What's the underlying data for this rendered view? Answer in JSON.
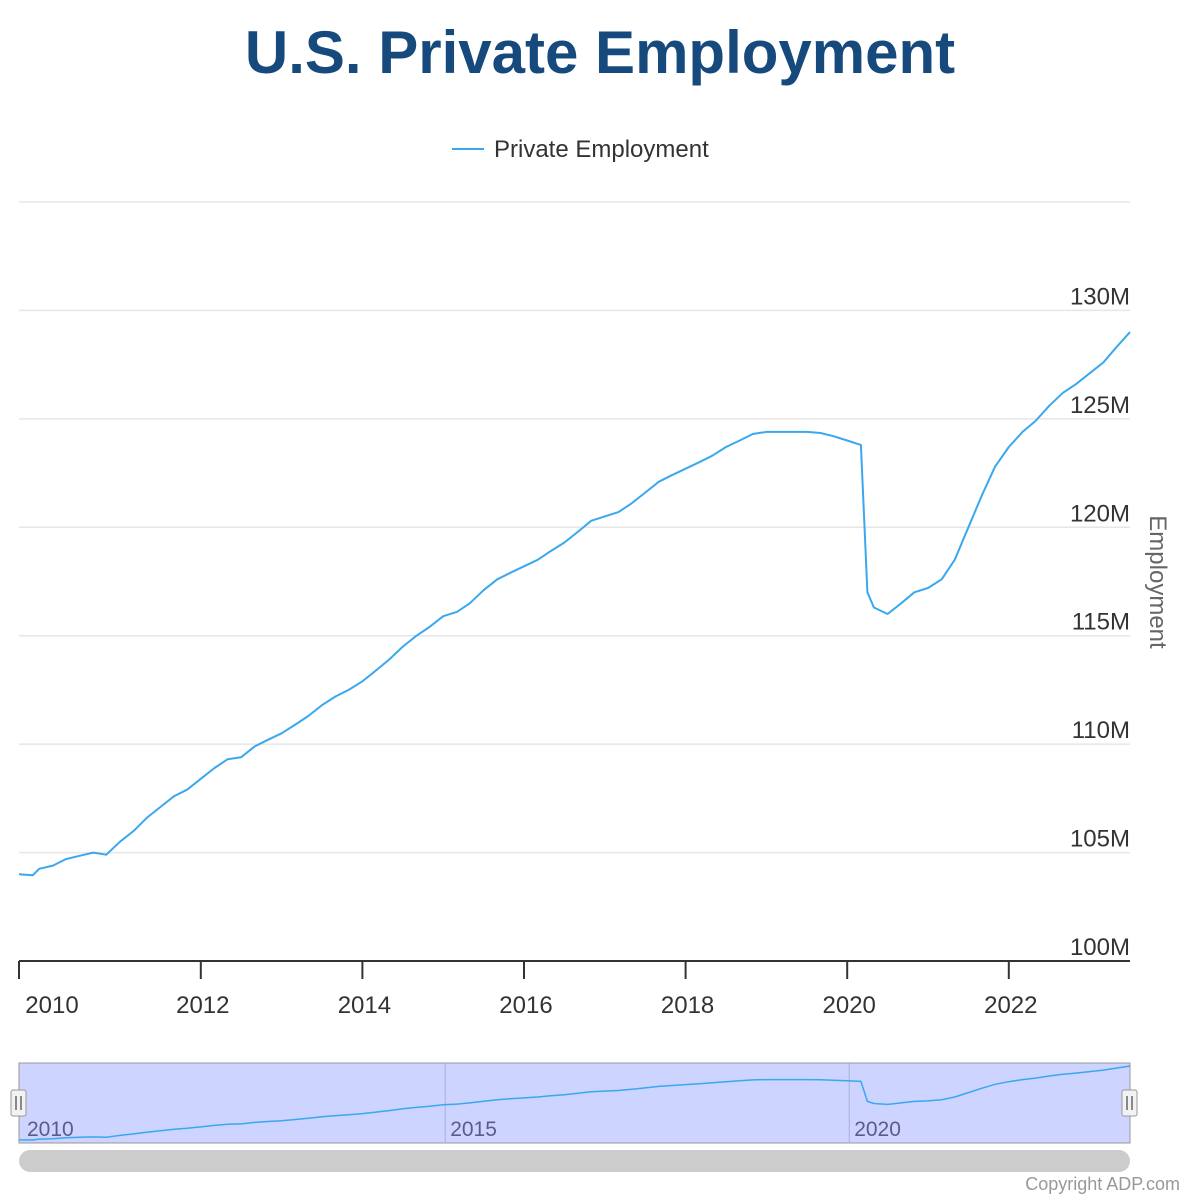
{
  "title": "U.S. Private Employment",
  "copyright": "Copyright ADP.com",
  "colors": {
    "title": "#174a7c",
    "series": "#3aa8ee",
    "navigator_fill": "#ccd4ff",
    "grid": "#e6e6e6"
  },
  "chart_data": {
    "type": "line",
    "title": "U.S. Private Employment",
    "xlabel": "",
    "ylabel": "Employment",
    "xlim": [
      2009.75,
      2023.5
    ],
    "ylim": [
      100,
      135
    ],
    "y_ticks": [
      100,
      105,
      110,
      115,
      120,
      125,
      130
    ],
    "y_tick_labels": [
      "100M",
      "105M",
      "110M",
      "115M",
      "120M",
      "125M",
      "130M"
    ],
    "x_ticks": [
      2010,
      2012,
      2014,
      2016,
      2018,
      2020,
      2022
    ],
    "x_tick_labels": [
      "2010",
      "2012",
      "2014",
      "2016",
      "2018",
      "2020",
      "2022"
    ],
    "legend": {
      "position": "top-center",
      "entries": [
        "Private Employment"
      ]
    },
    "navigator": {
      "x_ticks": [
        2010,
        2015,
        2020
      ],
      "x_tick_labels": [
        "2010",
        "2015",
        "2020"
      ]
    },
    "series": [
      {
        "name": "Private Employment",
        "unit": "millions",
        "x": [
          2009.75,
          2009.92,
          2010.0,
          2010.17,
          2010.33,
          2010.5,
          2010.67,
          2010.83,
          2011.0,
          2011.17,
          2011.33,
          2011.5,
          2011.67,
          2011.83,
          2012.0,
          2012.17,
          2012.33,
          2012.5,
          2012.67,
          2012.83,
          2013.0,
          2013.17,
          2013.33,
          2013.5,
          2013.67,
          2013.83,
          2014.0,
          2014.17,
          2014.33,
          2014.5,
          2014.67,
          2014.83,
          2015.0,
          2015.17,
          2015.33,
          2015.5,
          2015.67,
          2015.83,
          2016.0,
          2016.17,
          2016.33,
          2016.5,
          2016.67,
          2016.83,
          2017.0,
          2017.17,
          2017.33,
          2017.5,
          2017.67,
          2017.83,
          2018.0,
          2018.17,
          2018.33,
          2018.5,
          2018.67,
          2018.83,
          2019.0,
          2019.17,
          2019.33,
          2019.5,
          2019.67,
          2019.83,
          2020.0,
          2020.17,
          2020.25,
          2020.33,
          2020.5,
          2020.67,
          2020.83,
          2021.0,
          2021.17,
          2021.33,
          2021.5,
          2021.67,
          2021.83,
          2022.0,
          2022.17,
          2022.33,
          2022.5,
          2022.67,
          2022.83,
          2023.0,
          2023.17,
          2023.33,
          2023.5
        ],
        "values": [
          104.0,
          103.95,
          104.25,
          104.4,
          104.7,
          104.85,
          105.0,
          104.9,
          105.5,
          106.0,
          106.6,
          107.1,
          107.6,
          107.9,
          108.4,
          108.9,
          109.3,
          109.4,
          109.9,
          110.2,
          110.5,
          110.9,
          111.3,
          111.8,
          112.2,
          112.5,
          112.9,
          113.4,
          113.9,
          114.5,
          115.0,
          115.4,
          115.9,
          116.1,
          116.5,
          117.1,
          117.6,
          117.9,
          118.2,
          118.5,
          118.9,
          119.3,
          119.8,
          120.3,
          120.5,
          120.7,
          121.1,
          121.6,
          122.1,
          122.4,
          122.7,
          123.0,
          123.3,
          123.7,
          124.0,
          124.3,
          124.4,
          124.4,
          124.4,
          124.4,
          124.35,
          124.2,
          124.0,
          123.8,
          117.0,
          116.3,
          116.0,
          116.5,
          117.0,
          117.2,
          117.6,
          118.5,
          120.0,
          121.5,
          122.8,
          123.7,
          124.4,
          124.9,
          125.6,
          126.2,
          126.6,
          127.1,
          127.6,
          128.3,
          129.0
        ]
      }
    ]
  }
}
